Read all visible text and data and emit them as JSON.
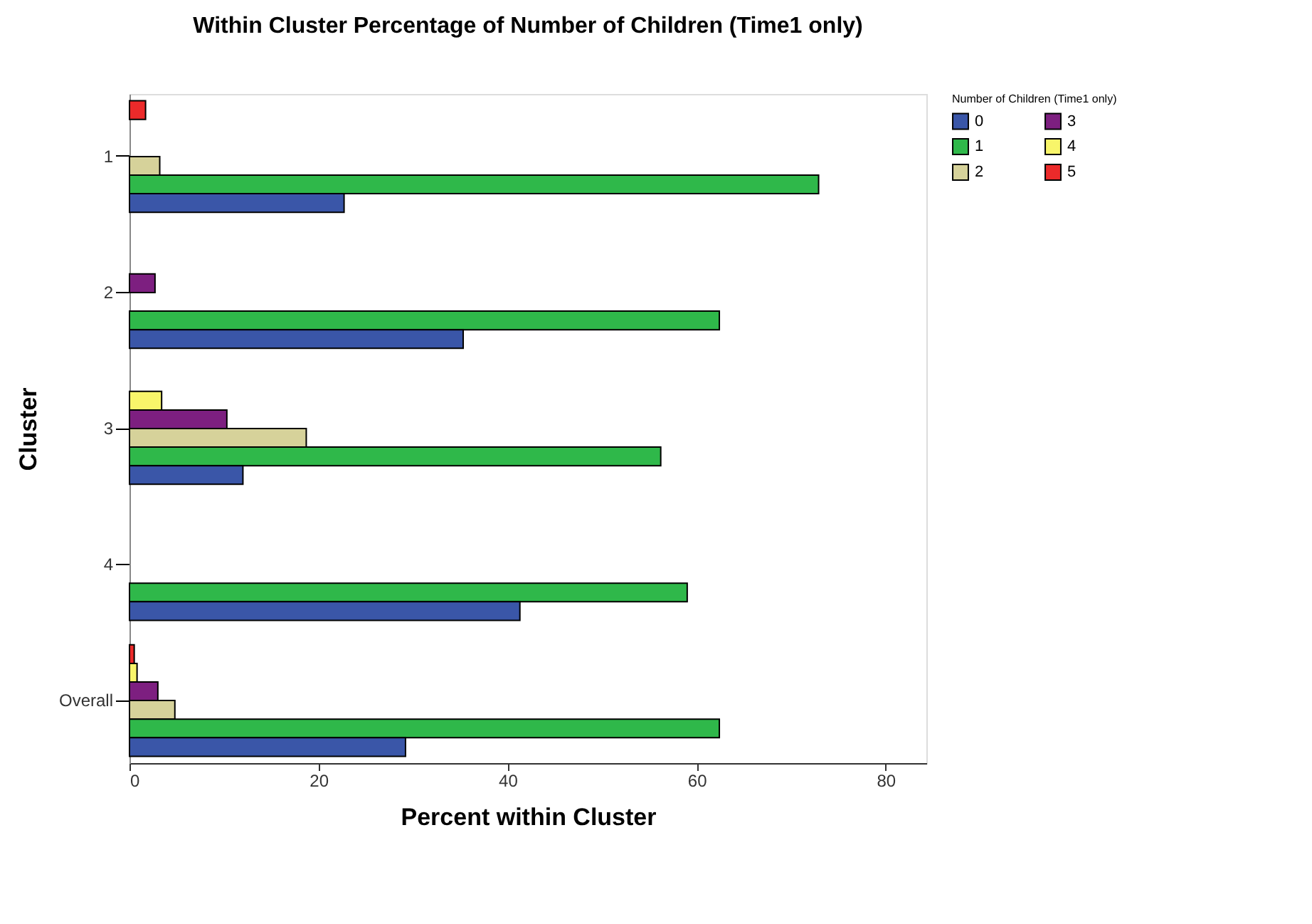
{
  "chart_data": {
    "type": "bar",
    "orientation": "horizontal",
    "title": "Within Cluster Percentage of Number of Children (Time1 only)",
    "xlabel": "Percent within Cluster",
    "ylabel": "Cluster",
    "legend_title": "Number of Children (Time1 only)",
    "categories": [
      "1",
      "2",
      "3",
      "4",
      "Overall"
    ],
    "series": [
      {
        "name": "5",
        "color": "#ec2a2a",
        "values": [
          1.7,
          null,
          null,
          null,
          0.5
        ]
      },
      {
        "name": "4",
        "color": "#f8f56a",
        "values": [
          null,
          null,
          3.4,
          null,
          0.8
        ]
      },
      {
        "name": "3",
        "color": "#7d1f80",
        "values": [
          null,
          2.7,
          10.3,
          null,
          3.0
        ]
      },
      {
        "name": "2",
        "color": "#d6d29a",
        "values": [
          3.2,
          null,
          18.7,
          null,
          4.8
        ]
      },
      {
        "name": "1",
        "color": "#2fb84a",
        "values": [
          72.9,
          62.4,
          56.2,
          59.0,
          62.4
        ]
      },
      {
        "name": "0",
        "color": "#3a56a8",
        "values": [
          22.7,
          35.3,
          12.0,
          41.3,
          29.2
        ]
      }
    ],
    "xlim": [
      0,
      84.3
    ],
    "xticks": [
      0,
      20,
      40,
      60,
      80
    ],
    "grid": false,
    "legend": "top right"
  }
}
